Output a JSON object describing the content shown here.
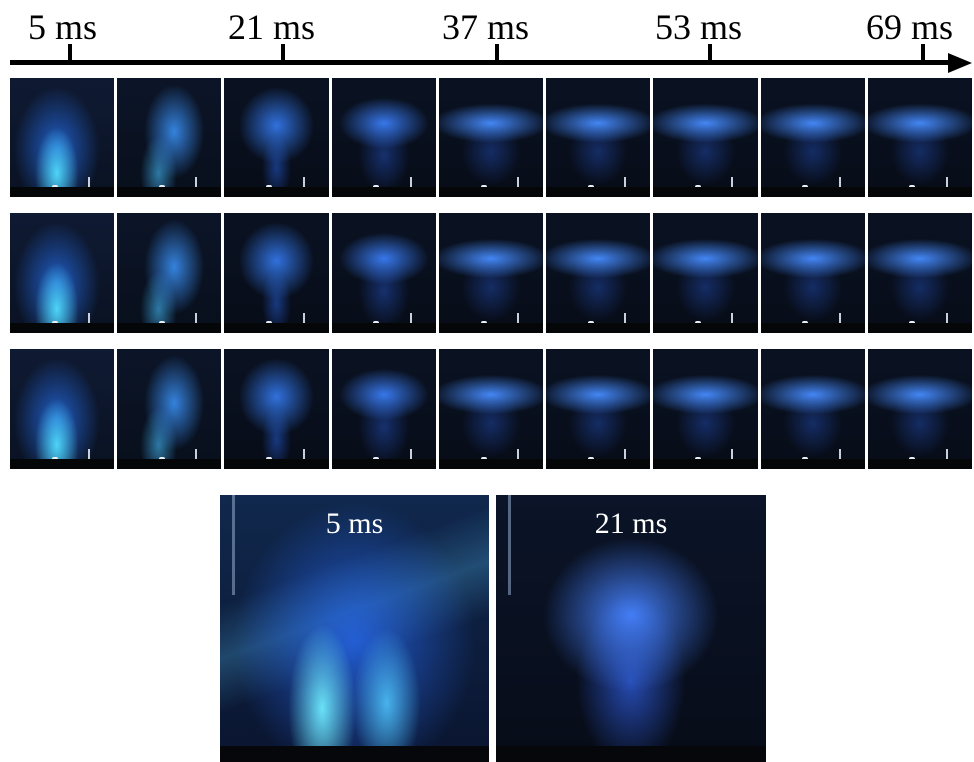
{
  "timeline": {
    "labels": [
      "5 ms",
      "21 ms",
      "37 ms",
      "53 ms",
      "69 ms"
    ]
  },
  "strips": [
    {
      "frames": 9
    },
    {
      "frames": 9
    },
    {
      "frames": 9
    }
  ],
  "enlarged": {
    "left_label": "5 ms",
    "right_label": "21 ms"
  },
  "colors": {
    "background": "#ffffff",
    "frame_dark": "#0b1220",
    "plasma_blue": "#2f6bff",
    "plasma_cyan": "#3fd0ff"
  }
}
